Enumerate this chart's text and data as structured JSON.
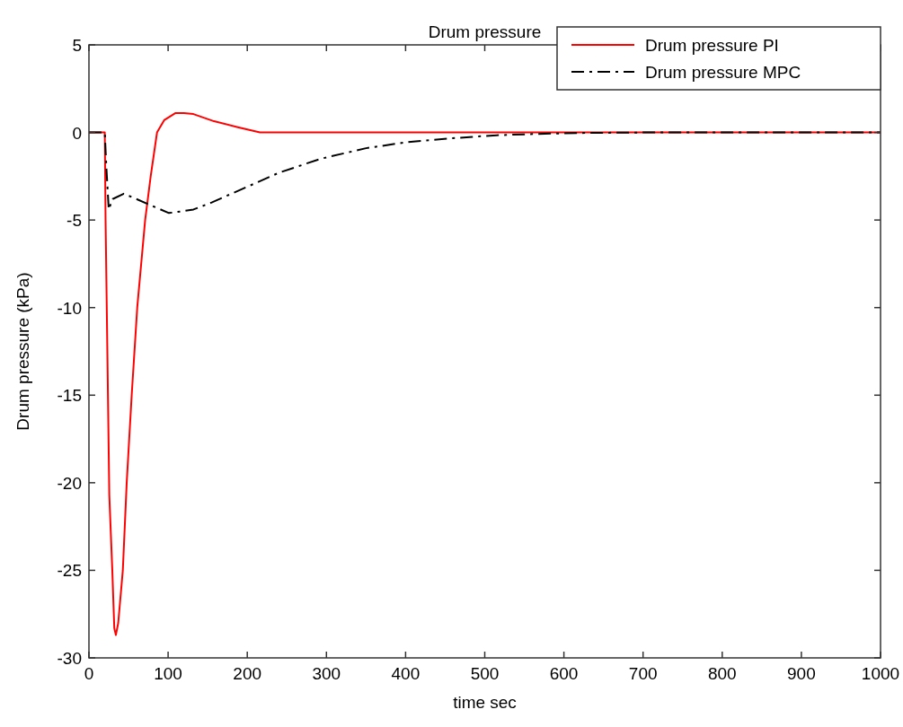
{
  "chart_data": {
    "type": "line",
    "title": "Drum pressure",
    "xlabel": "time sec",
    "ylabel": "Drum pressure (kPa)",
    "xlim": [
      0,
      1000
    ],
    "xticks": [
      0,
      100,
      200,
      300,
      400,
      500,
      600,
      700,
      800,
      900,
      1000
    ],
    "ylim": [
      -30,
      5
    ],
    "yticks": [
      -30,
      -25,
      -20,
      -15,
      -10,
      -5,
      0,
      5
    ],
    "legend": "top right",
    "grid": false,
    "series": [
      {
        "name": "Drum pressure PI",
        "color": "#ff0000",
        "line_style": "solid",
        "x": [
          0,
          20,
          21,
          24,
          25.7,
          29.5,
          32,
          34,
          37,
          42.8,
          47.7,
          54,
          61,
          71,
          78,
          86,
          95,
          109,
          120,
          132,
          158,
          188,
          216,
          400,
          600,
          800,
          1000
        ],
        "values": [
          0,
          0,
          -5,
          -15,
          -20.7,
          -25,
          -28.3,
          -28.7,
          -28,
          -25,
          -20,
          -15,
          -10,
          -5,
          -2.5,
          0,
          0.7,
          1.1,
          1.1,
          1.05,
          0.64,
          0.3,
          0,
          0,
          0,
          0,
          0
        ]
      },
      {
        "name": "Drum pressure MPC",
        "color": "#000000",
        "line_style": "dashdot",
        "x": [
          0,
          20,
          22,
          25,
          30,
          44,
          60,
          75,
          101,
          118,
          132,
          155,
          180,
          210,
          240,
          293,
          350,
          402,
          459,
          515,
          568,
          620,
          700,
          800,
          1000
        ],
        "values": [
          0,
          0,
          -2,
          -4.4,
          -3.8,
          -3.5,
          -3.8,
          -4.1,
          -4.6,
          -4.5,
          -4.4,
          -4.0,
          -3.5,
          -2.9,
          -2.3,
          -1.5,
          -0.9,
          -0.55,
          -0.33,
          -0.16,
          -0.08,
          -0.03,
          0,
          0,
          0
        ]
      }
    ]
  }
}
